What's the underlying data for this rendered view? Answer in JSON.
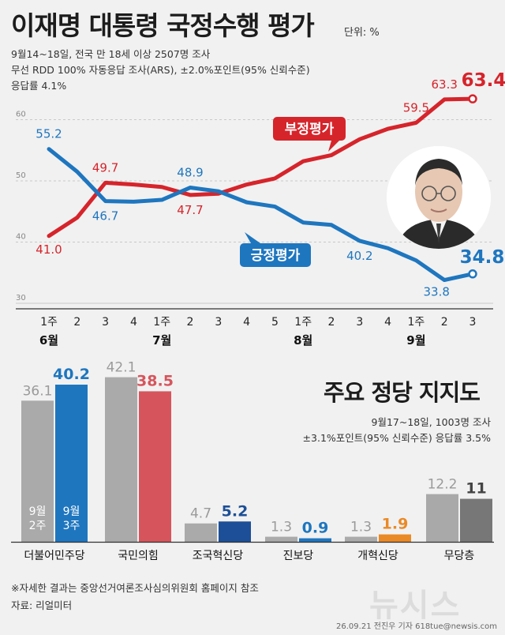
{
  "header": {
    "title": "이재명 대통령 국정수행 평가",
    "unit": "단위: %",
    "meta_line1": "9월14~18일, 전국 만 18세 이상 2507명 조사",
    "meta_line2": "무선 RDD 100% 자동응답 조사(ARS), ±2.0%포인트(95% 신뢰수준)",
    "meta_line3": "응답률 4.1%"
  },
  "colors": {
    "positive": "#1e76bf",
    "negative": "#d6242b",
    "bar_gray": "#aaaaaa",
    "bar_dark_gray": "#777777",
    "bar_blue_dark": "#1c4f97",
    "bar_orange": "#ea8a26"
  },
  "chart_data": [
    {
      "type": "line",
      "x_week_labels": [
        "1주",
        "2",
        "3",
        "4",
        "1주",
        "2",
        "3",
        "4",
        "5",
        "1주",
        "2",
        "3",
        "4",
        "1주",
        "2",
        "3"
      ],
      "x_month_labels": [
        {
          "label": "6월",
          "index": 0
        },
        {
          "label": "7월",
          "index": 4
        },
        {
          "label": "8월",
          "index": 9
        },
        {
          "label": "9월",
          "index": 13
        }
      ],
      "y_ticks": [
        30,
        40,
        50,
        60
      ],
      "ylim": [
        30,
        65
      ],
      "series": [
        {
          "name": "부정평가",
          "color": "#d6242b",
          "values": [
            41.0,
            44.0,
            49.7,
            49.4,
            49.0,
            47.7,
            47.9,
            49.4,
            50.4,
            53.2,
            54.2,
            56.8,
            58.5,
            59.5,
            63.3,
            63.4
          ],
          "labeled": {
            "0": "41.0",
            "2": "49.7",
            "5": "47.7",
            "13": "59.5",
            "14": "63.3",
            "15": "63.4"
          }
        },
        {
          "name": "긍정평가",
          "color": "#1e76bf",
          "values": [
            55.2,
            51.5,
            46.7,
            46.6,
            46.9,
            48.9,
            48.3,
            46.5,
            45.8,
            43.2,
            42.8,
            40.2,
            39.0,
            37.0,
            33.8,
            34.8
          ],
          "labeled": {
            "0": "55.2",
            "2": "46.7",
            "5": "48.9",
            "11": "40.2",
            "14": "33.8",
            "15": "34.8"
          }
        }
      ]
    },
    {
      "type": "bar",
      "title": "주요 정당 지지도",
      "meta_line1": "9월17~18일, 1003명 조사",
      "meta_line2": "±3.1%포인트(95% 신뢰수준) 응답률 3.5%",
      "categories": [
        "더불어민주당",
        "국민의힘",
        "조국혁신당",
        "진보당",
        "개혁신당",
        "무당층"
      ],
      "series": [
        {
          "name": "9월 2주",
          "values": [
            36.1,
            42.1,
            4.7,
            1.3,
            1.3,
            12.2
          ]
        },
        {
          "name": "9월 3주",
          "values": [
            40.2,
            38.5,
            5.2,
            0.9,
            1.9,
            11
          ],
          "colors": [
            "#1e76bf",
            "#d6555c",
            "#1c4f97",
            "#1e76bf",
            "#ea8a26",
            "#777777"
          ]
        }
      ],
      "value_labels_prev": [
        "36.1",
        "42.1",
        "4.7",
        "1.3",
        "1.3",
        "12.2"
      ],
      "value_labels_curr": [
        "40.2",
        "38.5",
        "5.2",
        "0.9",
        "1.9",
        "11"
      ],
      "legend_in_bar": {
        "prev": [
          "9월",
          "2주"
        ],
        "curr": [
          "9월",
          "3주"
        ]
      },
      "ylim": [
        0,
        45
      ]
    }
  ],
  "footer": {
    "footnote": "※자세한 결과는 중앙선거여론조사심의위원회 홈페이지 참조",
    "source": "자료: 리얼미터",
    "credit": "26.09.21 전진우 기자 618tue@newsis.com",
    "watermark": "뉴시스"
  }
}
